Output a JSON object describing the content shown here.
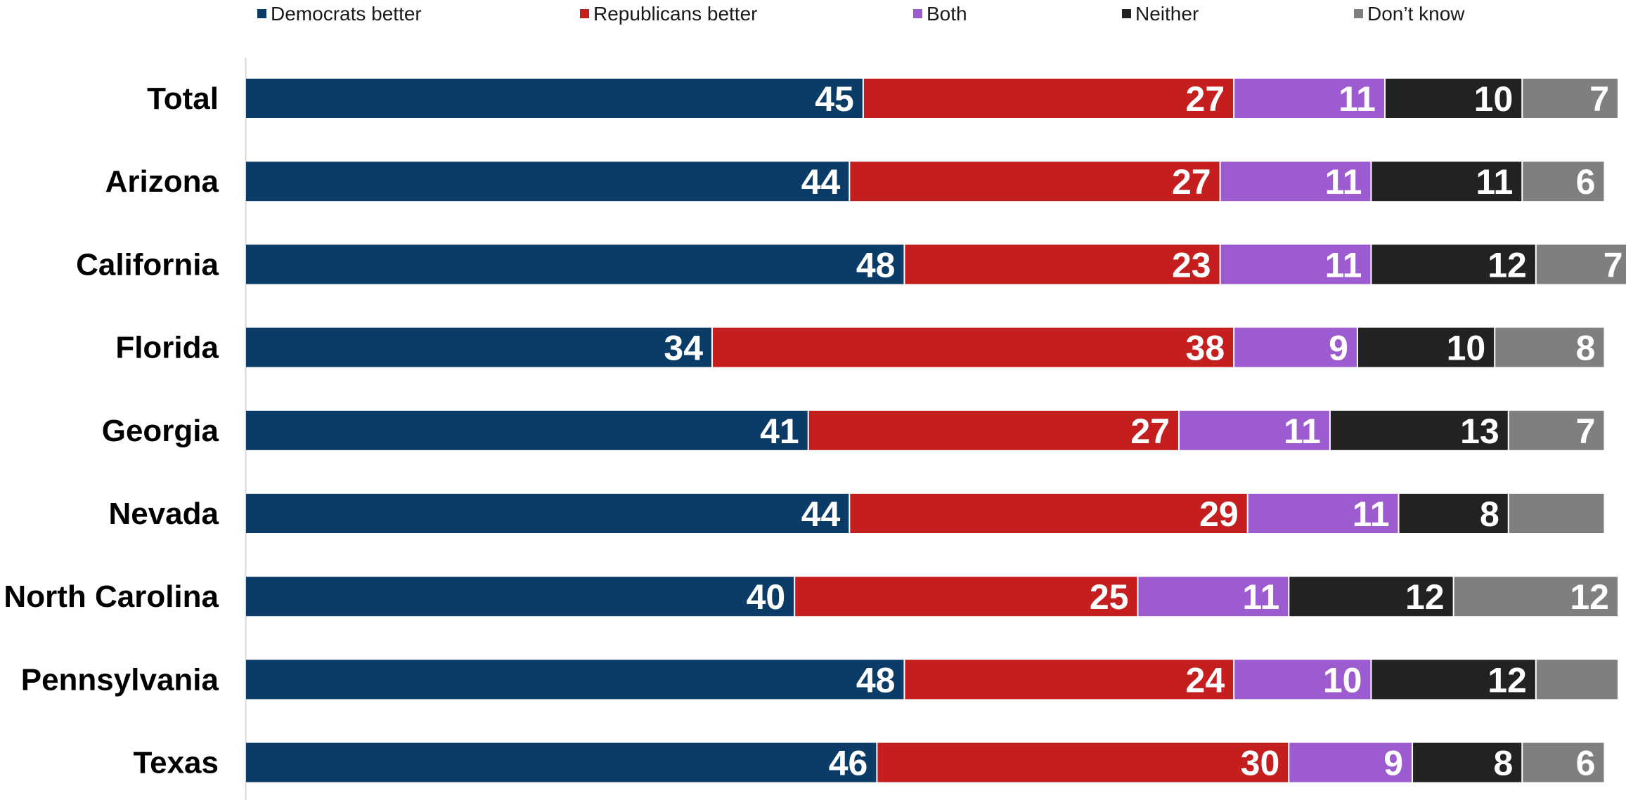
{
  "chart_data": {
    "type": "bar",
    "orientation": "horizontal",
    "stacked": true,
    "categories": [
      "Total",
      "Arizona",
      "California",
      "Florida",
      "Georgia",
      "Nevada",
      "North Carolina",
      "Pennsylvania",
      "Texas"
    ],
    "series": [
      {
        "name": "Democrats better",
        "color": "#0b3c68",
        "values": [
          45,
          44,
          48,
          34,
          41,
          44,
          40,
          48,
          46
        ],
        "labels": [
          "45",
          "44",
          "48",
          "34",
          "41",
          "44",
          "40",
          "48",
          "46"
        ]
      },
      {
        "name": "Republicans better",
        "color": "#c41e1e",
        "values": [
          27,
          27,
          23,
          38,
          27,
          29,
          25,
          24,
          30
        ],
        "labels": [
          "27",
          "27",
          "23",
          "38",
          "27",
          "29",
          "25",
          "24",
          "30"
        ]
      },
      {
        "name": "Both",
        "color": "#9c5cd0",
        "values": [
          11,
          11,
          11,
          9,
          11,
          11,
          11,
          10,
          9
        ],
        "labels": [
          "11",
          "11",
          "11",
          "9",
          "11",
          "11",
          "11",
          "10",
          "9"
        ]
      },
      {
        "name": "Neither",
        "color": "#222222",
        "values": [
          10,
          11,
          12,
          10,
          13,
          8,
          12,
          12,
          8
        ],
        "labels": [
          "10",
          "11",
          "12",
          "10",
          "13",
          "8",
          "12",
          "12",
          "8"
        ]
      },
      {
        "name": "Don’t know",
        "color": "#7f7f7f",
        "values": [
          7,
          6,
          7,
          8,
          7,
          7,
          12,
          6,
          6
        ],
        "labels": [
          "7",
          "6",
          "7",
          "8",
          "7",
          "",
          "12",
          "",
          "6"
        ]
      }
    ],
    "xlim": [
      0,
      100
    ],
    "grid": false,
    "legend_position": "top"
  }
}
